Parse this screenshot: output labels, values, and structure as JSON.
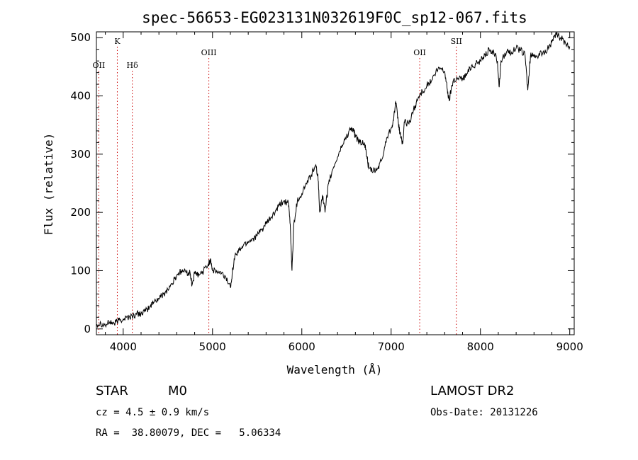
{
  "chart_data": {
    "type": "line",
    "title": "spec-56653-EG023131N032619F0C_sp12-067.fits",
    "xlabel": "Wavelength (Å)",
    "ylabel": "Flux (relative)",
    "xlim": [
      3700,
      9050
    ],
    "ylim": [
      -10,
      510
    ],
    "xticks": [
      4000,
      5000,
      6000,
      7000,
      8000,
      9000
    ],
    "yticks": [
      0,
      100,
      200,
      300,
      400,
      500
    ],
    "line_color": "#000000",
    "marker_color": "#cc0000",
    "spectrum": [
      [
        3700,
        8
      ],
      [
        3750,
        10
      ],
      [
        3800,
        6
      ],
      [
        3850,
        12
      ],
      [
        3900,
        9
      ],
      [
        3950,
        15
      ],
      [
        4000,
        17
      ],
      [
        4050,
        20
      ],
      [
        4100,
        22
      ],
      [
        4150,
        25
      ],
      [
        4200,
        27
      ],
      [
        4250,
        30
      ],
      [
        4300,
        38
      ],
      [
        4350,
        48
      ],
      [
        4400,
        52
      ],
      [
        4450,
        60
      ],
      [
        4500,
        68
      ],
      [
        4550,
        78
      ],
      [
        4600,
        92
      ],
      [
        4650,
        100
      ],
      [
        4700,
        98
      ],
      [
        4750,
        95
      ],
      [
        4770,
        75
      ],
      [
        4800,
        95
      ],
      [
        4850,
        92
      ],
      [
        4900,
        100
      ],
      [
        4950,
        110
      ],
      [
        4980,
        120
      ],
      [
        5000,
        100
      ],
      [
        5050,
        98
      ],
      [
        5100,
        95
      ],
      [
        5150,
        88
      ],
      [
        5200,
        72
      ],
      [
        5220,
        95
      ],
      [
        5250,
        125
      ],
      [
        5300,
        135
      ],
      [
        5350,
        145
      ],
      [
        5400,
        150
      ],
      [
        5450,
        155
      ],
      [
        5500,
        160
      ],
      [
        5550,
        170
      ],
      [
        5600,
        180
      ],
      [
        5650,
        190
      ],
      [
        5700,
        200
      ],
      [
        5750,
        212
      ],
      [
        5800,
        220
      ],
      [
        5850,
        215
      ],
      [
        5870,
        180
      ],
      [
        5890,
        100
      ],
      [
        5910,
        180
      ],
      [
        5950,
        220
      ],
      [
        6000,
        232
      ],
      [
        6050,
        250
      ],
      [
        6100,
        262
      ],
      [
        6150,
        280
      ],
      [
        6180,
        265
      ],
      [
        6200,
        200
      ],
      [
        6230,
        230
      ],
      [
        6260,
        200
      ],
      [
        6300,
        250
      ],
      [
        6350,
        275
      ],
      [
        6400,
        295
      ],
      [
        6450,
        315
      ],
      [
        6500,
        330
      ],
      [
        6550,
        345
      ],
      [
        6580,
        340
      ],
      [
        6600,
        330
      ],
      [
        6650,
        320
      ],
      [
        6700,
        320
      ],
      [
        6730,
        295
      ],
      [
        6750,
        275
      ],
      [
        6800,
        270
      ],
      [
        6850,
        275
      ],
      [
        6900,
        292
      ],
      [
        6950,
        328
      ],
      [
        7000,
        345
      ],
      [
        7030,
        362
      ],
      [
        7050,
        390
      ],
      [
        7080,
        355
      ],
      [
        7100,
        335
      ],
      [
        7130,
        318
      ],
      [
        7150,
        355
      ],
      [
        7200,
        352
      ],
      [
        7250,
        375
      ],
      [
        7300,
        395
      ],
      [
        7350,
        408
      ],
      [
        7400,
        418
      ],
      [
        7450,
        425
      ],
      [
        7500,
        440
      ],
      [
        7550,
        448
      ],
      [
        7600,
        442
      ],
      [
        7630,
        410
      ],
      [
        7650,
        392
      ],
      [
        7680,
        418
      ],
      [
        7700,
        428
      ],
      [
        7750,
        430
      ],
      [
        7800,
        430
      ],
      [
        7850,
        438
      ],
      [
        7900,
        452
      ],
      [
        7950,
        455
      ],
      [
        8000,
        460
      ],
      [
        8050,
        472
      ],
      [
        8100,
        478
      ],
      [
        8150,
        475
      ],
      [
        8190,
        460
      ],
      [
        8210,
        415
      ],
      [
        8230,
        460
      ],
      [
        8300,
        478
      ],
      [
        8350,
        475
      ],
      [
        8400,
        482
      ],
      [
        8450,
        478
      ],
      [
        8500,
        470
      ],
      [
        8530,
        410
      ],
      [
        8560,
        468
      ],
      [
        8600,
        472
      ],
      [
        8650,
        468
      ],
      [
        8700,
        475
      ],
      [
        8750,
        480
      ],
      [
        8800,
        492
      ],
      [
        8850,
        505
      ],
      [
        8900,
        500
      ],
      [
        8950,
        492
      ],
      [
        9000,
        485
      ]
    ],
    "lines": [
      {
        "label": "OII",
        "x": 3727,
        "label_row": "lower"
      },
      {
        "label": "K",
        "x": 3934,
        "label_row": "upper"
      },
      {
        "label": "Hδ",
        "x": 4102,
        "label_row": "lower"
      },
      {
        "label": "OIII",
        "x": 4959,
        "label_row": "middle"
      },
      {
        "label": "OII",
        "x": 7320,
        "label_row": "middle"
      },
      {
        "label": "SII",
        "x": 7730,
        "label_row": "upper"
      }
    ]
  },
  "info": {
    "object_class": "STAR",
    "subclass": "M0",
    "redshift": "cz = 4.5 ± 0.9 km/s",
    "coords": "RA =  38.80079, DEC =   5.06334",
    "survey": "LAMOST DR2",
    "obs_date": "Obs-Date: 20131226"
  }
}
